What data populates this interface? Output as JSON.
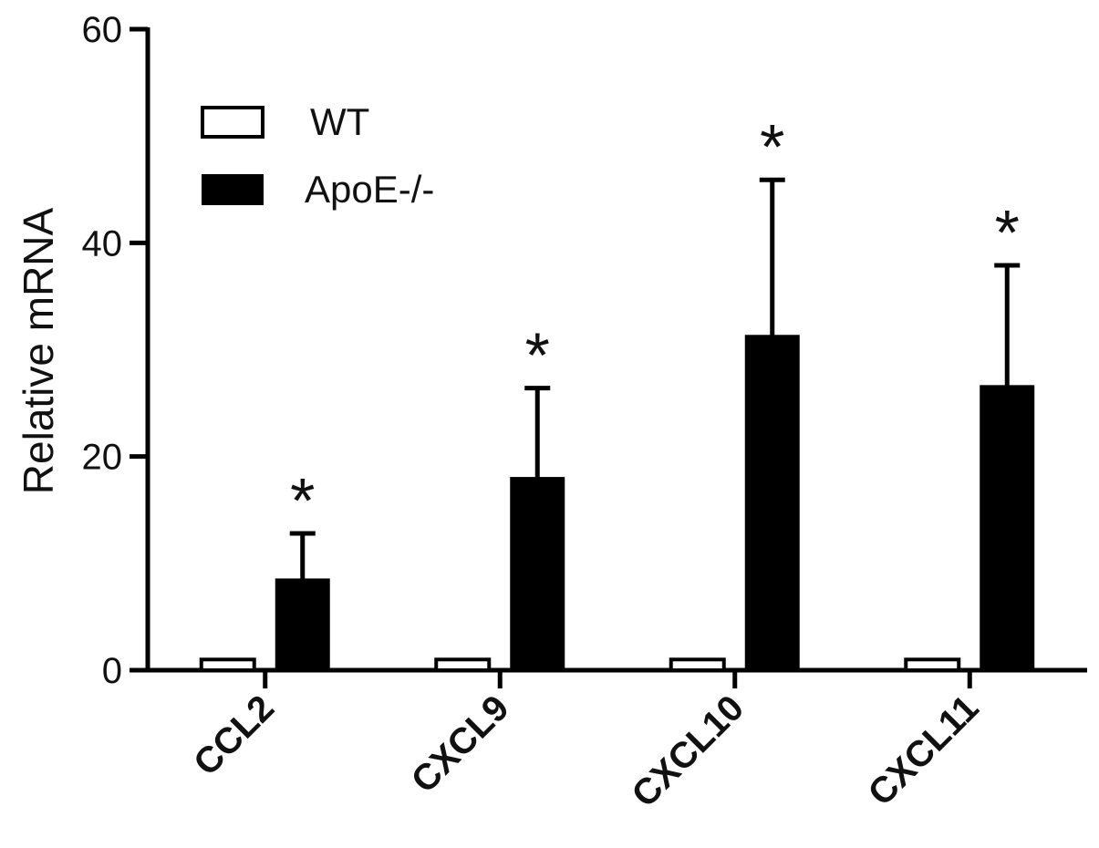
{
  "chart_data": {
    "type": "bar",
    "categories": [
      "CCL2",
      "CXCL9",
      "CXCL10",
      "CXCL11"
    ],
    "series": [
      {
        "name": "WT",
        "values": [
          1,
          1,
          1,
          1
        ],
        "color": "#ffffff",
        "stroke": "#000000"
      },
      {
        "name": "ApoE-/-",
        "values": [
          8.5,
          18,
          31.3,
          26.6
        ],
        "errors": [
          4.3,
          8.4,
          14.6,
          11.3
        ],
        "color": "#000000",
        "stroke": "#000000"
      }
    ],
    "significance": [
      "*",
      "*",
      "*",
      "*"
    ],
    "ylabel": "Relative mRNA",
    "xlabel": "",
    "title": "",
    "ylim": [
      0,
      60
    ],
    "yticks": [
      0,
      20,
      40,
      60
    ],
    "legend_position": "top-left",
    "grid": false
  }
}
